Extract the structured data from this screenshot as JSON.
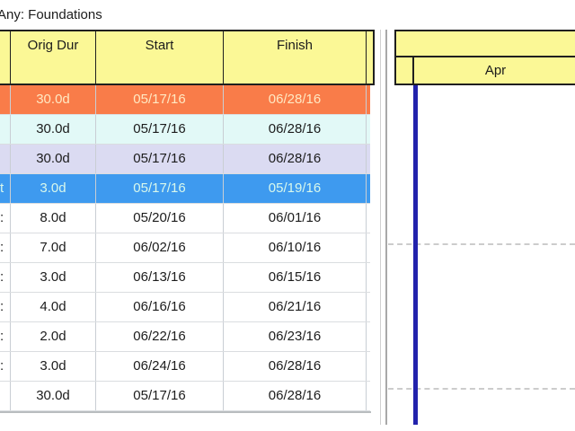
{
  "header": {
    "title": "Any: Foundations"
  },
  "table": {
    "columns": [
      {
        "label": "Orig Dur"
      },
      {
        "label": "Start"
      },
      {
        "label": "Finish"
      }
    ],
    "rows": [
      {
        "label_fragment": "",
        "orig_dur": "30.0d",
        "start": "05/17/16",
        "finish": "06/28/16",
        "style": "orange"
      },
      {
        "label_fragment": "",
        "orig_dur": "30.0d",
        "start": "05/17/16",
        "finish": "06/28/16",
        "style": "cyan"
      },
      {
        "label_fragment": "",
        "orig_dur": "30.0d",
        "start": "05/17/16",
        "finish": "06/28/16",
        "style": "lavender"
      },
      {
        "label_fragment": "t",
        "orig_dur": "3.0d",
        "start": "05/17/16",
        "finish": "05/19/16",
        "style": "selected"
      },
      {
        "label_fragment": ":",
        "orig_dur": "8.0d",
        "start": "05/20/16",
        "finish": "06/01/16",
        "style": "white"
      },
      {
        "label_fragment": ":",
        "orig_dur": "7.0d",
        "start": "06/02/16",
        "finish": "06/10/16",
        "style": "white"
      },
      {
        "label_fragment": ":",
        "orig_dur": "3.0d",
        "start": "06/13/16",
        "finish": "06/15/16",
        "style": "white"
      },
      {
        "label_fragment": ":",
        "orig_dur": "4.0d",
        "start": "06/16/16",
        "finish": "06/21/16",
        "style": "white"
      },
      {
        "label_fragment": ":",
        "orig_dur": "2.0d",
        "start": "06/22/16",
        "finish": "06/23/16",
        "style": "white"
      },
      {
        "label_fragment": ":",
        "orig_dur": "3.0d",
        "start": "06/24/16",
        "finish": "06/28/16",
        "style": "white"
      },
      {
        "label_fragment": "",
        "orig_dur": "30.0d",
        "start": "05/17/16",
        "finish": "06/28/16",
        "style": "white"
      }
    ]
  },
  "timeline": {
    "month_label": "Apr"
  },
  "colors": {
    "header_yellow": "#FBF896",
    "row_orange_bg": "#F97C49",
    "row_orange_text": "#FFE9C3",
    "row_cyan_bg": "#E2F9F7",
    "row_lavender_bg": "#DBDBF2",
    "row_selected_bg": "#3E9AEF",
    "row_selected_text": "#D8F8EC",
    "data_date_line": "#2222AC"
  }
}
